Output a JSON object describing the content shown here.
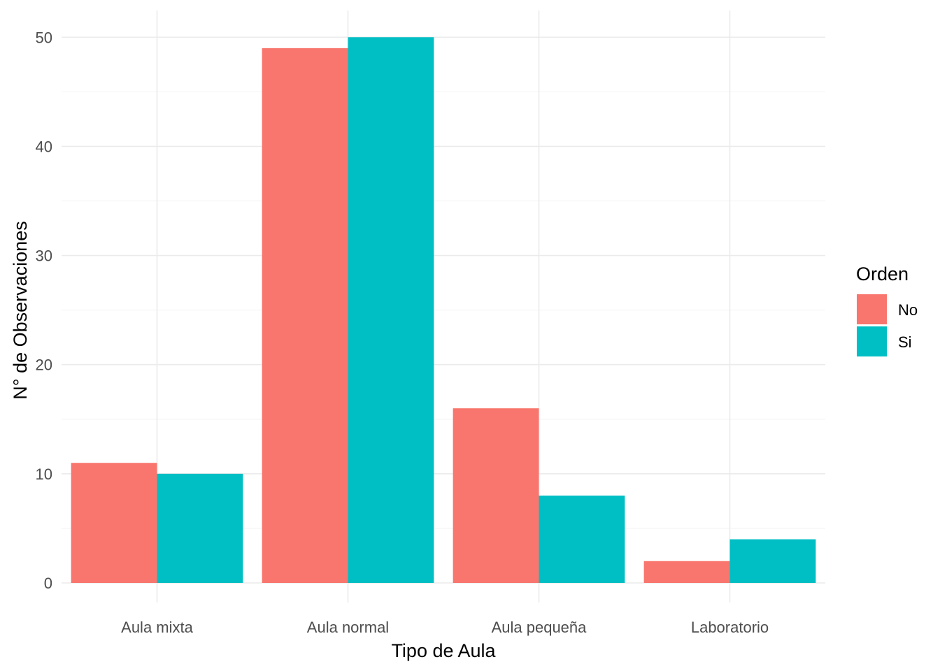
{
  "chart_data": {
    "type": "bar",
    "mode": "grouped",
    "title": "",
    "xlabel": "Tipo de Aula",
    "ylabel": "N° de Observaciones",
    "categories": [
      "Aula mixta",
      "Aula normal",
      "Aula pequeña",
      "Laboratorio"
    ],
    "series": [
      {
        "name": "No",
        "color": "#F8766D",
        "values": [
          11,
          49,
          16,
          2
        ]
      },
      {
        "name": "Si",
        "color": "#00BFC4",
        "values": [
          10,
          50,
          8,
          4
        ]
      }
    ],
    "ylim": [
      0,
      52.5
    ],
    "yticks": [
      0,
      10,
      20,
      30,
      40,
      50
    ],
    "grid": true,
    "legend": {
      "title": "Orden",
      "position": "right"
    }
  }
}
